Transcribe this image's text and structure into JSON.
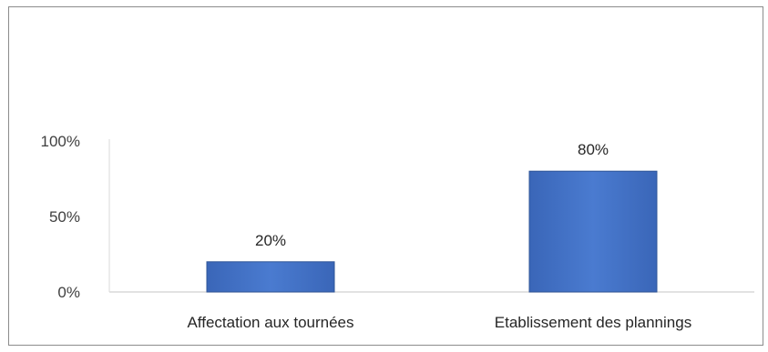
{
  "chart_data": {
    "type": "bar",
    "categories": [
      "Affectation aux tournées",
      "Etablissement des plannings"
    ],
    "values": [
      20,
      80
    ],
    "data_labels": [
      "20%",
      "80%"
    ],
    "title": "",
    "xlabel": "",
    "ylabel": "",
    "ylim": [
      0,
      100
    ],
    "yticks": [
      0,
      50,
      100
    ],
    "ytick_labels": [
      "0%",
      "50%",
      "100%"
    ],
    "grid": false,
    "legend": "none",
    "bar_color": "#4472c4",
    "bar_edge_color": "#2f5597"
  }
}
